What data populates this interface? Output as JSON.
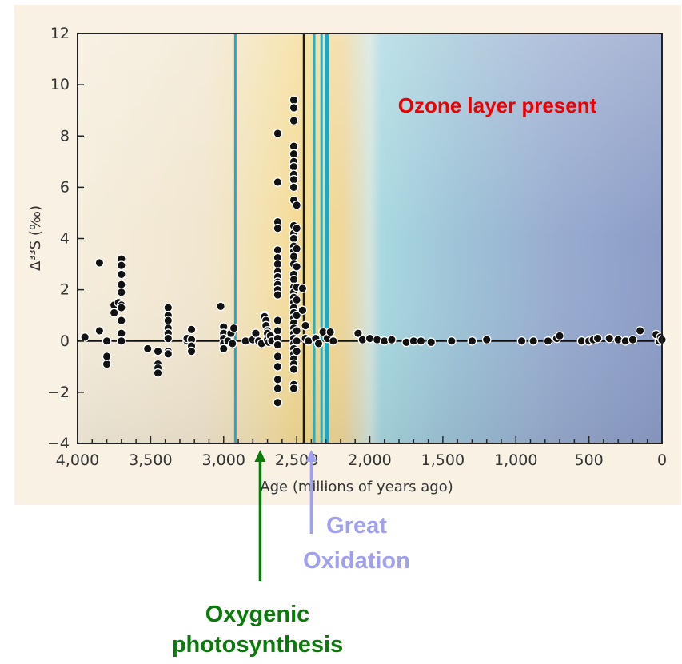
{
  "chart_data": {
    "type": "scatter",
    "title": "",
    "xlabel": "Age (millions of years ago)",
    "ylabel": "Δ³³S (‰)",
    "xlim": [
      4000,
      0
    ],
    "ylim": [
      -4,
      12
    ],
    "x_ticks": [
      {
        "value": 4000,
        "label": "4,000"
      },
      {
        "value": 3500,
        "label": "3,500"
      },
      {
        "value": 3000,
        "label": "3,000"
      },
      {
        "value": 2500,
        "label": "2,500"
      },
      {
        "value": 2000,
        "label": "2,000"
      },
      {
        "value": 1500,
        "label": "1,500"
      },
      {
        "value": 1000,
        "label": "1,000"
      },
      {
        "value": 500,
        "label": "500"
      },
      {
        "value": 0,
        "label": "0"
      }
    ],
    "y_ticks": [
      {
        "value": -4,
        "label": "−4"
      },
      {
        "value": -2,
        "label": "−2"
      },
      {
        "value": 0,
        "label": "0"
      },
      {
        "value": 2,
        "label": "2"
      },
      {
        "value": 4,
        "label": "4"
      },
      {
        "value": 6,
        "label": "6"
      },
      {
        "value": 8,
        "label": "8"
      },
      {
        "value": 10,
        "label": "10"
      },
      {
        "value": 12,
        "label": "12"
      }
    ],
    "vertical_lines": [
      {
        "x": 2920,
        "color": "#20a8c8"
      },
      {
        "x": 2450,
        "color": "#1a1a1a"
      },
      {
        "x": 2380,
        "color": "#20b0d0"
      },
      {
        "x": 2330,
        "color": "#20b0d0"
      },
      {
        "x": 2295,
        "color": "#18a8cc"
      }
    ],
    "annotations": [
      {
        "text": "Ozone layer present",
        "color": "#ee0000"
      },
      {
        "text": "Great",
        "color": "#a0a0f0"
      },
      {
        "text": "Oxidation",
        "color": "#a0a0f0"
      },
      {
        "text": "Oxygenic",
        "color": "#0a7a0a"
      },
      {
        "text": "photosynthesis",
        "color": "#0a7a0a"
      }
    ],
    "arrows": [
      {
        "x": 2750,
        "color": "#0a7a0a"
      },
      {
        "x": 2400,
        "color": "#a0a0f0"
      }
    ],
    "points": [
      [
        3950,
        0.15
      ],
      [
        3850,
        3.05
      ],
      [
        3850,
        0.4
      ],
      [
        3800,
        -0.9
      ],
      [
        3800,
        -0.6
      ],
      [
        3800,
        0.0
      ],
      [
        3750,
        1.4
      ],
      [
        3750,
        1.1
      ],
      [
        3720,
        1.5
      ],
      [
        3700,
        3.2
      ],
      [
        3700,
        2.95
      ],
      [
        3700,
        2.6
      ],
      [
        3700,
        2.2
      ],
      [
        3700,
        1.9
      ],
      [
        3700,
        1.4
      ],
      [
        3700,
        1.3
      ],
      [
        3700,
        0.8
      ],
      [
        3700,
        0.3
      ],
      [
        3700,
        0.0
      ],
      [
        3520,
        -0.3
      ],
      [
        3450,
        -0.4
      ],
      [
        3450,
        -0.9
      ],
      [
        3450,
        -1.05
      ],
      [
        3450,
        -1.25
      ],
      [
        3380,
        1.3
      ],
      [
        3380,
        1.0
      ],
      [
        3380,
        0.8
      ],
      [
        3380,
        0.5
      ],
      [
        3380,
        0.3
      ],
      [
        3380,
        0.1
      ],
      [
        3380,
        -0.4
      ],
      [
        3380,
        -0.5
      ],
      [
        3250,
        0.0
      ],
      [
        3250,
        0.1
      ],
      [
        3220,
        0.45
      ],
      [
        3220,
        0.05
      ],
      [
        3220,
        -0.2
      ],
      [
        3220,
        -0.4
      ],
      [
        3020,
        1.35
      ],
      [
        3000,
        0.55
      ],
      [
        3000,
        0.3
      ],
      [
        3000,
        0.1
      ],
      [
        3000,
        -0.1
      ],
      [
        3000,
        -0.3
      ],
      [
        2970,
        0.0
      ],
      [
        2950,
        0.3
      ],
      [
        2940,
        -0.1
      ],
      [
        2930,
        0.5
      ],
      [
        2850,
        0.0
      ],
      [
        2800,
        0.05
      ],
      [
        2780,
        0.3
      ],
      [
        2760,
        0.0
      ],
      [
        2740,
        -0.1
      ],
      [
        2720,
        1.0
      ],
      [
        2720,
        0.95
      ],
      [
        2710,
        0.8
      ],
      [
        2710,
        0.6
      ],
      [
        2700,
        0.4
      ],
      [
        2700,
        0.3
      ],
      [
        2700,
        0.05
      ],
      [
        2690,
        -0.05
      ],
      [
        2680,
        0.2
      ],
      [
        2670,
        0.0
      ],
      [
        2630,
        8.1
      ],
      [
        2630,
        6.2
      ],
      [
        2630,
        4.65
      ],
      [
        2630,
        4.4
      ],
      [
        2630,
        3.55
      ],
      [
        2630,
        3.25
      ],
      [
        2630,
        3.0
      ],
      [
        2630,
        2.7
      ],
      [
        2630,
        2.5
      ],
      [
        2630,
        2.3
      ],
      [
        2630,
        2.2
      ],
      [
        2630,
        2.0
      ],
      [
        2630,
        1.8
      ],
      [
        2630,
        0.8
      ],
      [
        2630,
        0.4
      ],
      [
        2630,
        0.1
      ],
      [
        2630,
        -0.15
      ],
      [
        2630,
        -0.6
      ],
      [
        2630,
        -1.0
      ],
      [
        2630,
        -1.5
      ],
      [
        2630,
        -1.85
      ],
      [
        2630,
        -2.4
      ],
      [
        2520,
        9.4
      ],
      [
        2520,
        9.1
      ],
      [
        2520,
        8.6
      ],
      [
        2520,
        7.6
      ],
      [
        2520,
        7.3
      ],
      [
        2520,
        7.0
      ],
      [
        2520,
        6.8
      ],
      [
        2520,
        6.5
      ],
      [
        2520,
        6.3
      ],
      [
        2520,
        6.0
      ],
      [
        2520,
        5.5
      ],
      [
        2520,
        4.5
      ],
      [
        2520,
        4.2
      ],
      [
        2520,
        4.0
      ],
      [
        2520,
        3.7
      ],
      [
        2520,
        3.5
      ],
      [
        2520,
        3.3
      ],
      [
        2520,
        3.0
      ],
      [
        2520,
        2.6
      ],
      [
        2520,
        2.4
      ],
      [
        2520,
        2.1
      ],
      [
        2520,
        1.9
      ],
      [
        2520,
        1.7
      ],
      [
        2520,
        1.5
      ],
      [
        2520,
        1.3
      ],
      [
        2520,
        1.1
      ],
      [
        2520,
        0.9
      ],
      [
        2520,
        0.7
      ],
      [
        2520,
        0.5
      ],
      [
        2520,
        0.3
      ],
      [
        2520,
        0.1
      ],
      [
        2520,
        -0.1
      ],
      [
        2520,
        -0.3
      ],
      [
        2520,
        -0.5
      ],
      [
        2520,
        -0.7
      ],
      [
        2520,
        -0.9
      ],
      [
        2520,
        -1.1
      ],
      [
        2520,
        -1.7
      ],
      [
        2520,
        -1.85
      ],
      [
        2500,
        5.3
      ],
      [
        2500,
        4.4
      ],
      [
        2500,
        3.6
      ],
      [
        2500,
        2.9
      ],
      [
        2500,
        2.1
      ],
      [
        2500,
        1.6
      ],
      [
        2500,
        1.0
      ],
      [
        2500,
        0.4
      ],
      [
        2500,
        0.0
      ],
      [
        2500,
        -0.4
      ],
      [
        2460,
        2.05
      ],
      [
        2460,
        1.2
      ],
      [
        2440,
        0.6
      ],
      [
        2440,
        0.1
      ],
      [
        2420,
        0.0
      ],
      [
        2370,
        0.1
      ],
      [
        2350,
        -0.1
      ],
      [
        2320,
        0.35
      ],
      [
        2290,
        0.1
      ],
      [
        2270,
        0.35
      ],
      [
        2250,
        0.0
      ],
      [
        2080,
        0.3
      ],
      [
        2050,
        0.05
      ],
      [
        2000,
        0.1
      ],
      [
        1950,
        0.05
      ],
      [
        1900,
        0.0
      ],
      [
        1850,
        0.05
      ],
      [
        1750,
        -0.05
      ],
      [
        1700,
        0.0
      ],
      [
        1650,
        0.0
      ],
      [
        1580,
        -0.05
      ],
      [
        1440,
        0.0
      ],
      [
        1300,
        0.0
      ],
      [
        1200,
        0.05
      ],
      [
        960,
        0.0
      ],
      [
        880,
        0.0
      ],
      [
        780,
        0.0
      ],
      [
        720,
        0.1
      ],
      [
        700,
        0.2
      ],
      [
        550,
        0.0
      ],
      [
        500,
        0.0
      ],
      [
        470,
        0.05
      ],
      [
        440,
        0.1
      ],
      [
        360,
        0.1
      ],
      [
        300,
        0.05
      ],
      [
        250,
        0.0
      ],
      [
        200,
        0.05
      ],
      [
        150,
        0.4
      ],
      [
        40,
        0.25
      ],
      [
        20,
        0.0
      ],
      [
        10,
        0.15
      ],
      [
        0,
        0.05
      ]
    ]
  }
}
